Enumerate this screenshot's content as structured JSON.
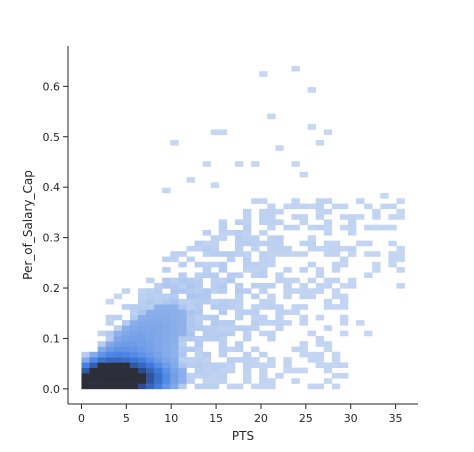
{
  "chart_data": {
    "type": "heatmap",
    "subtype": "2d-histogram",
    "xlabel": "PTS",
    "ylabel": "Per_of_Salary_Cap",
    "xlim": [
      -1.5,
      37.5
    ],
    "ylim": [
      -0.03,
      0.68
    ],
    "x_ticks": [
      0,
      5,
      10,
      15,
      20,
      25,
      30,
      35
    ],
    "y_ticks": [
      0.0,
      0.1,
      0.2,
      0.3,
      0.4,
      0.5,
      0.6
    ],
    "x_tick_labels": [
      "0",
      "5",
      "10",
      "15",
      "20",
      "25",
      "30",
      "35"
    ],
    "y_tick_labels": [
      "0.0",
      "0.1",
      "0.2",
      "0.3",
      "0.4",
      "0.5",
      "0.6"
    ],
    "bin_width_x": 0.9,
    "bin_width_y": 0.0105,
    "color_low": "#c6d7f2",
    "color_high": "#3f7de3",
    "color_peak": "#2c2f3a",
    "grid": false,
    "spines": "left-bottom",
    "density_regions": [
      {
        "x": [
          0,
          8
        ],
        "y": [
          0.0,
          0.06
        ],
        "level": "high"
      },
      {
        "x": [
          2,
          5
        ],
        "y": [
          0.01,
          0.025
        ],
        "level": "peak"
      },
      {
        "x": [
          0,
          18
        ],
        "y": [
          0.0,
          0.2
        ],
        "level": "medium"
      },
      {
        "x": [
          0,
          30
        ],
        "y": [
          0.0,
          0.37
        ],
        "level": "low"
      }
    ],
    "outliers": [
      [
        10.2,
        0.487
      ],
      [
        14.5,
        0.51
      ],
      [
        15.3,
        0.51
      ],
      [
        19.0,
        0.443
      ],
      [
        20.5,
        0.625
      ],
      [
        23.5,
        0.635
      ],
      [
        21.2,
        0.537
      ],
      [
        25.5,
        0.593
      ],
      [
        25.7,
        0.523
      ],
      [
        27.0,
        0.51
      ],
      [
        26.5,
        0.485
      ],
      [
        24.0,
        0.447
      ],
      [
        22.0,
        0.477
      ],
      [
        17.5,
        0.443
      ],
      [
        13.5,
        0.445
      ],
      [
        9.5,
        0.397
      ],
      [
        12.0,
        0.417
      ],
      [
        15.0,
        0.407
      ],
      [
        25.0,
        0.43
      ],
      [
        33.5,
        0.383
      ],
      [
        35.7,
        0.35
      ],
      [
        35.7,
        0.34
      ],
      [
        31.0,
        0.34
      ],
      [
        32.5,
        0.32
      ],
      [
        30.5,
        0.27
      ],
      [
        29.5,
        0.2
      ],
      [
        31.0,
        0.13
      ],
      [
        31.8,
        0.11
      ],
      [
        28.5,
        0.068
      ],
      [
        27.5,
        0.08
      ],
      [
        22.5,
        0.035
      ],
      [
        24.5,
        0.033
      ]
    ]
  }
}
